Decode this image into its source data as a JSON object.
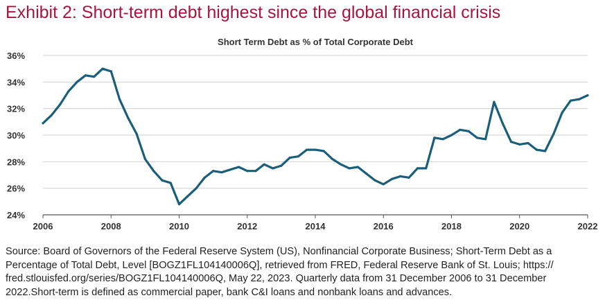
{
  "header": {
    "exhibit_title": "Exhibit 2: Short-term debt highest since the global financial crisis"
  },
  "footer": {
    "source": "Source: Board of Governors of the Federal Reserve System (US), Nonfinancial Corporate Business; Short-Term Debt as a Percentage of Total Debt, Level [BOGZ1FL104140006Q], retrieved from FRED, Federal Reserve Bank of St. Louis; https:// fred.stlouisfed.org/series/BOGZ1FL104140006Q, May 22, 2023. Quarterly data from 31 December 2006 to 31 December 2022.Short-term is defined as commercial paper, bank C&I loans and nonbank loans and advances."
  },
  "colors": {
    "title": "#a3173f",
    "line": "#1b5e7a",
    "grid": "#d0d0d0",
    "axis": "#555555"
  },
  "chart_data": {
    "type": "line",
    "title": "Short Term Debt as % of Total Corporate Debt",
    "xlabel": "",
    "ylabel": "",
    "xlim": [
      2006,
      2022
    ],
    "ylim": [
      24,
      36
    ],
    "grid": "horizontal",
    "x_ticks": [
      2006,
      2008,
      2010,
      2012,
      2014,
      2016,
      2018,
      2020,
      2022
    ],
    "x_tick_labels": [
      "2006",
      "2008",
      "2010",
      "2012",
      "2014",
      "2016",
      "2018",
      "2020",
      "2022"
    ],
    "y_ticks": [
      24,
      26,
      28,
      30,
      32,
      34,
      36
    ],
    "y_tick_labels": [
      "24%",
      "26%",
      "28%",
      "30%",
      "32%",
      "34%",
      "36%"
    ],
    "series": [
      {
        "x": [
          2006.0,
          2006.25,
          2006.5,
          2006.75,
          2007.0,
          2007.25,
          2007.5,
          2007.75,
          2008.0,
          2008.25,
          2008.5,
          2008.75,
          2009.0,
          2009.25,
          2009.5,
          2009.75,
          2010.0,
          2010.25,
          2010.5,
          2010.75,
          2011.0,
          2011.25,
          2011.5,
          2011.75,
          2012.0,
          2012.25,
          2012.5,
          2012.75,
          2013.0,
          2013.25,
          2013.5,
          2013.75,
          2014.0,
          2014.25,
          2014.5,
          2014.75,
          2015.0,
          2015.25,
          2015.5,
          2015.75,
          2016.0,
          2016.25,
          2016.5,
          2016.75,
          2017.0,
          2017.25,
          2017.5,
          2017.75,
          2018.0,
          2018.25,
          2018.5,
          2018.75,
          2019.0,
          2019.25,
          2019.5,
          2019.75,
          2020.0,
          2020.25,
          2020.5,
          2020.75,
          2021.0,
          2021.25,
          2021.5,
          2021.75,
          2022.0
        ],
        "values": [
          30.9,
          31.5,
          32.3,
          33.3,
          34.0,
          34.5,
          34.4,
          35.0,
          34.8,
          32.7,
          31.3,
          30.1,
          28.2,
          27.3,
          26.6,
          26.4,
          24.8,
          25.4,
          26.0,
          26.8,
          27.3,
          27.2,
          27.4,
          27.6,
          27.3,
          27.3,
          27.8,
          27.5,
          27.7,
          28.3,
          28.4,
          28.9,
          28.9,
          28.8,
          28.2,
          27.8,
          27.5,
          27.6,
          27.1,
          26.6,
          26.3,
          26.7,
          26.9,
          26.8,
          27.5,
          27.5,
          29.8,
          29.7,
          30.0,
          30.4,
          30.3,
          29.8,
          29.7,
          32.5,
          30.9,
          29.5,
          29.3,
          29.4,
          28.9,
          28.8,
          30.1,
          31.7,
          32.6,
          32.7,
          33.0
        ]
      }
    ]
  }
}
